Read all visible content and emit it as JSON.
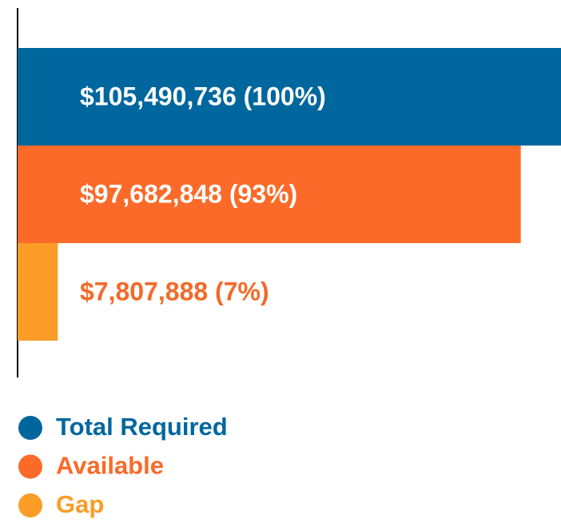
{
  "chart_data": {
    "type": "bar",
    "orientation": "horizontal",
    "xlim": [
      0,
      105490736
    ],
    "series": [
      {
        "name": "Total Required",
        "color": "#00679e",
        "values": [
          105490736
        ],
        "value_labels": [
          "$105,490,736 (100%)"
        ]
      },
      {
        "name": "Available",
        "color": "#fb6a28",
        "values": [
          97682848
        ],
        "value_labels": [
          "$97,682,848 (93%)"
        ]
      },
      {
        "name": "Gap",
        "color": "#fb9d27",
        "values": [
          7807888
        ],
        "value_labels": [
          "$7,807,888 (7%)"
        ]
      }
    ]
  }
}
